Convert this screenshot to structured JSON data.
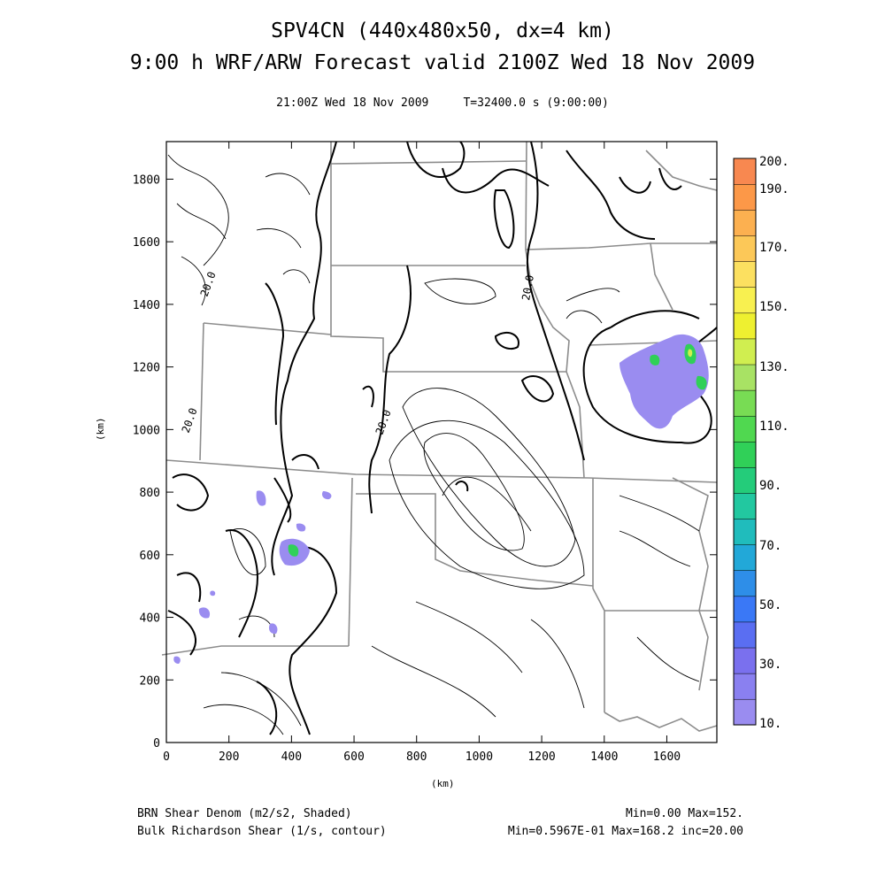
{
  "header": {
    "title_line1": "SPV4CN (440x480x50, dx=4 km)",
    "title_line2": "9:00 h WRF/ARW Forecast valid 2100Z Wed 18 Nov 2009",
    "time_line": "21:00Z Wed 18 Nov 2009     T=32400.0 s (9:00:00)"
  },
  "axes": {
    "x_label": "(km)",
    "y_label": "(km)",
    "x_ticks": [
      0,
      200,
      400,
      600,
      800,
      1000,
      1200,
      1400,
      1600
    ],
    "y_ticks": [
      0,
      200,
      400,
      600,
      800,
      1000,
      1200,
      1400,
      1600,
      1800
    ],
    "x_range": [
      0,
      1760
    ],
    "y_range": [
      0,
      1920
    ]
  },
  "contour_labels": [
    "20.0",
    "20.0",
    "20.0",
    "20.0"
  ],
  "colorbar": {
    "labels": [
      "200.",
      "190.",
      "170.",
      "150.",
      "130.",
      "110.",
      "90.",
      "70.",
      "50.",
      "30.",
      "10."
    ],
    "colors": [
      "#9a8cf0",
      "#8a80f0",
      "#7a70ee",
      "#5a6ef2",
      "#3a78f6",
      "#2e8ee8",
      "#22a8d8",
      "#20bcbc",
      "#22c8a0",
      "#24cc7a",
      "#30d058",
      "#50d850",
      "#78dc54",
      "#a8e264",
      "#d0ee50",
      "#eef030",
      "#f8f050",
      "#fce060",
      "#fcc858",
      "#fcb050",
      "#fc9848",
      "#f88850"
    ]
  },
  "footer": {
    "left_line1": "BRN Shear Denom (m2/s2, Shaded)",
    "left_line2": "Bulk Richardson Shear (1/s, contour)",
    "right_line1": "Min=0.00 Max=152.",
    "right_line2": "Min=0.5967E-01 Max=168.2 inc=20.00"
  }
}
